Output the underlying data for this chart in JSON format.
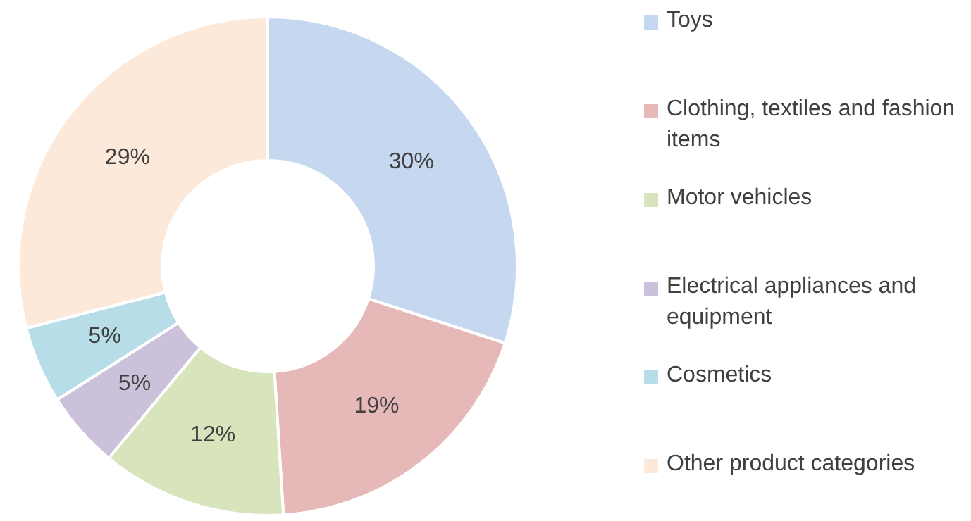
{
  "chart_data": {
    "type": "donut",
    "categories": [
      "Toys",
      "Clothing, textiles and fashion items",
      "Motor vehicles",
      "Electrical appliances and equipment",
      "Cosmetics",
      "Other product categories"
    ],
    "values": [
      30,
      19,
      12,
      5,
      5,
      29
    ],
    "colors": [
      "#c6d8f0",
      "#e6b9b8",
      "#d8e4bc",
      "#ccc1da",
      "#b7dee8",
      "#fde9d9"
    ],
    "value_labels": [
      "30%",
      "19%",
      "12%",
      "5%",
      "5%",
      "29%"
    ],
    "legend": "right"
  }
}
